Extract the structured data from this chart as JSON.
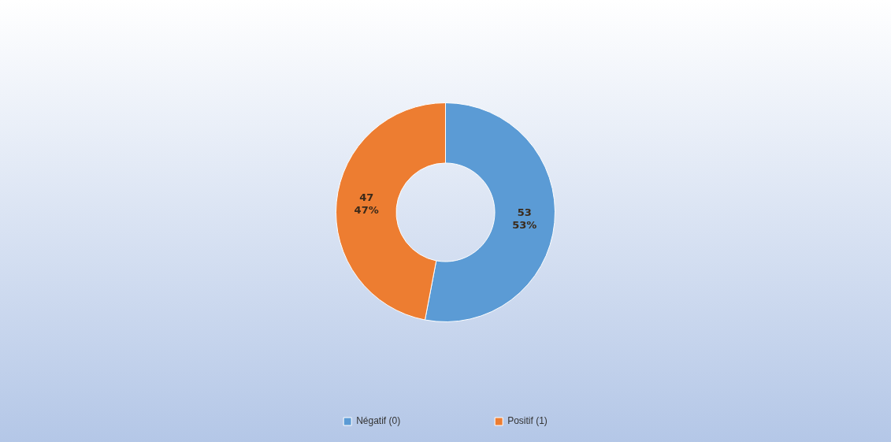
{
  "chart_data": {
    "type": "donut",
    "categories": [
      "Négatif (0)",
      "Positif (1)"
    ],
    "values": [
      53,
      47
    ],
    "colors": [
      "#5b9bd5",
      "#ed7d31"
    ],
    "value_labels": [
      "53\n53%",
      "47\n47%"
    ],
    "legend": "bottom"
  }
}
